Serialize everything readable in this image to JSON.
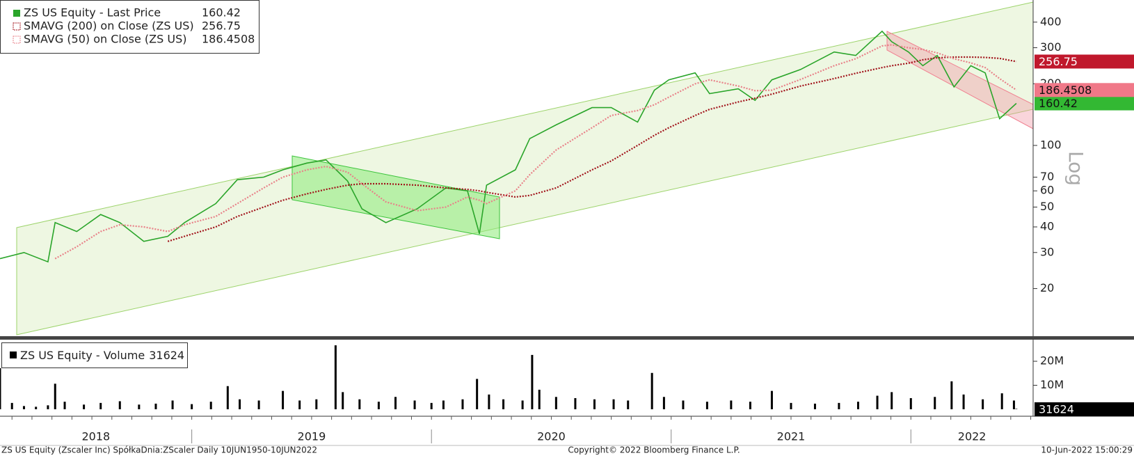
{
  "chart_data": [
    {
      "type": "line",
      "log_scale": true,
      "grid": false,
      "legend": "top-left",
      "y_label": "Log",
      "xlim": [
        2018.2,
        2022.51
      ],
      "ylim": [
        11.8,
        513
      ],
      "yticks": [
        20,
        30,
        40,
        50,
        60,
        70,
        100,
        200,
        300,
        400
      ],
      "x": [
        2018.2,
        2018.3,
        2018.4,
        2018.43,
        2018.52,
        2018.62,
        2018.7,
        2018.8,
        2018.9,
        2018.97,
        2019.1,
        2019.19,
        2019.3,
        2019.38,
        2019.48,
        2019.56,
        2019.65,
        2019.71,
        2019.81,
        2019.94,
        2020.06,
        2020.15,
        2020.2,
        2020.23,
        2020.35,
        2020.41,
        2020.52,
        2020.67,
        2020.75,
        2020.86,
        2020.93,
        2020.99,
        2021.1,
        2021.16,
        2021.28,
        2021.35,
        2021.42,
        2021.54,
        2021.68,
        2021.77,
        2021.88,
        2021.92,
        2021.99,
        2022.05,
        2022.11,
        2022.18,
        2022.25,
        2022.31,
        2022.37,
        2022.44
      ],
      "series": [
        {
          "name": "ZS US Equity - Last Price",
          "color": "#2aa52a",
          "values": [
            28,
            30,
            27,
            42,
            38,
            46,
            42,
            34,
            36,
            42,
            52,
            68,
            70,
            76,
            82,
            85,
            67,
            49,
            42,
            49,
            62,
            60,
            37,
            64,
            76,
            108,
            126,
            153,
            153,
            130,
            186,
            209,
            226,
            179,
            189,
            166,
            209,
            235,
            286,
            275,
            361,
            321,
            286,
            245,
            275,
            193,
            245,
            226,
            135,
            160.42
          ]
        },
        {
          "name": "SMAVG (200)  on Close (ZS US)",
          "color": "#a01018",
          "values": [
            null,
            null,
            null,
            null,
            null,
            null,
            null,
            null,
            34,
            36,
            40,
            45,
            50,
            54,
            58,
            61,
            64,
            65,
            65,
            64,
            62,
            61,
            60,
            59,
            56,
            57,
            62,
            76,
            84,
            100,
            112,
            122,
            140,
            150,
            163,
            170,
            178,
            195,
            212,
            225,
            240,
            245,
            252,
            262,
            268,
            270,
            270,
            269,
            266,
            256.75
          ]
        },
        {
          "name": "SMAVG (50)  on Close (ZS US)",
          "color": "#e88088",
          "values": [
            null,
            null,
            null,
            28,
            32,
            38,
            41,
            40,
            38,
            41,
            45,
            52,
            62,
            70,
            76,
            79,
            74,
            65,
            53,
            48,
            50,
            56,
            54,
            52,
            60,
            72,
            95,
            122,
            140,
            148,
            158,
            172,
            200,
            209,
            195,
            185,
            186,
            210,
            245,
            265,
            306,
            310,
            300,
            294,
            283,
            265,
            253,
            240,
            212,
            186.4508
          ]
        }
      ]
    },
    {
      "type": "bar",
      "legend": "top-left",
      "xlim": [
        2018.2,
        2022.51
      ],
      "ylim": [
        0,
        29000000
      ],
      "yticks": [
        {
          "value": 10000000,
          "label": "10M"
        },
        {
          "value": 20000000,
          "label": "20M"
        }
      ],
      "xticks": [
        {
          "value": 2018,
          "label": "2018"
        },
        {
          "value": 2019,
          "label": "2019"
        },
        {
          "value": 2020,
          "label": "2020"
        },
        {
          "value": 2021,
          "label": "2021"
        },
        {
          "value": 2022,
          "label": "2022"
        }
      ],
      "x": [
        2018.2,
        2018.25,
        2018.3,
        2018.35,
        2018.4,
        2018.43,
        2018.47,
        2018.55,
        2018.62,
        2018.7,
        2018.78,
        2018.85,
        2018.92,
        2019.0,
        2019.08,
        2019.15,
        2019.2,
        2019.28,
        2019.38,
        2019.45,
        2019.52,
        2019.6,
        2019.63,
        2019.7,
        2019.78,
        2019.85,
        2019.93,
        2020.0,
        2020.05,
        2020.13,
        2020.19,
        2020.24,
        2020.3,
        2020.38,
        2020.42,
        2020.45,
        2020.52,
        2020.6,
        2020.68,
        2020.76,
        2020.82,
        2020.92,
        2020.97,
        2021.05,
        2021.15,
        2021.25,
        2021.33,
        2021.42,
        2021.5,
        2021.6,
        2021.7,
        2021.78,
        2021.86,
        2021.92,
        2022.0,
        2022.1,
        2022.17,
        2022.22,
        2022.3,
        2022.38,
        2022.43,
        2022.44
      ],
      "series": [
        {
          "name": "ZS US Equity - Volume",
          "color": "#000000",
          "values": [
            17000000,
            2500000,
            1200000,
            900000,
            1500000,
            10500000,
            3000000,
            1800000,
            2500000,
            3200000,
            1800000,
            2200000,
            3500000,
            2000000,
            3000000,
            9500000,
            4000000,
            3500000,
            7500000,
            3500000,
            4000000,
            26500000,
            7000000,
            4000000,
            3000000,
            5000000,
            3500000,
            2500000,
            3500000,
            4000000,
            12500000,
            6000000,
            4000000,
            3500000,
            22500000,
            8000000,
            5000000,
            4500000,
            4000000,
            4000000,
            3500000,
            15000000,
            5000000,
            3500000,
            3000000,
            3500000,
            3000000,
            7500000,
            2500000,
            2200000,
            2500000,
            3000000,
            5500000,
            7000000,
            4500000,
            5000000,
            11500000,
            6000000,
            4000000,
            6500000,
            3500000,
            31624
          ]
        }
      ]
    }
  ],
  "footer": {
    "left": "ZS US Equity (Zscaler Inc) SpółkaDnia:ZScaler  Daily 10JUN1950-10JUN2022",
    "center": "Copyright© 2022 Bloomberg Finance L.P.",
    "right": "10-Jun-2022 15:00:29"
  }
}
